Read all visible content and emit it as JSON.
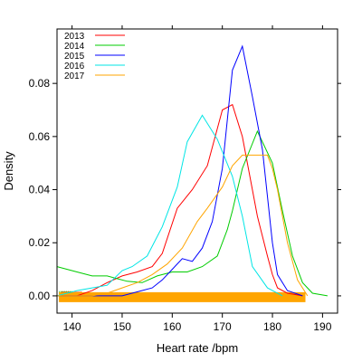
{
  "chart_data": {
    "type": "line",
    "xlabel": "Heart rate /bpm",
    "ylabel": "Density",
    "xlim": [
      137,
      193
    ],
    "ylim": [
      -0.0065,
      0.1005
    ],
    "x_ticks": [
      140,
      150,
      160,
      170,
      180,
      190
    ],
    "y_ticks": [
      0.0,
      0.02,
      0.04,
      0.06,
      0.08
    ],
    "x_tick_labels": [
      "140",
      "150",
      "160",
      "170",
      "180",
      "190"
    ],
    "y_tick_labels": [
      "0.00",
      "0.02",
      "0.04",
      "0.06",
      "0.08"
    ],
    "legend_position": "top-left",
    "grid": false,
    "rug": {
      "present": true,
      "y": 0.0,
      "main_range": [
        137.5,
        186.5
      ],
      "main_color": "#FFA500"
    },
    "series": [
      {
        "name": "2013",
        "color": "#FF0000",
        "x": [
          137,
          141,
          144,
          147,
          150,
          153,
          156,
          158,
          161,
          164,
          167,
          170,
          172,
          174,
          177,
          179,
          180,
          181,
          183,
          186
        ],
        "y": [
          0.0,
          0.0,
          0.002,
          0.005,
          0.0075,
          0.009,
          0.011,
          0.016,
          0.033,
          0.04,
          0.049,
          0.07,
          0.072,
          0.06,
          0.03,
          0.015,
          0.008,
          0.003,
          0.001,
          0.0
        ]
      },
      {
        "name": "2014",
        "color": "#00CC00",
        "x": [
          137,
          141,
          144,
          147,
          149,
          151,
          154,
          157,
          160,
          163,
          166,
          169,
          170,
          171,
          172,
          174,
          177,
          180,
          182,
          184,
          186,
          188,
          191
        ],
        "y": [
          0.011,
          0.009,
          0.0075,
          0.0075,
          0.0065,
          0.0055,
          0.005,
          0.0075,
          0.009,
          0.009,
          0.011,
          0.015,
          0.02,
          0.025,
          0.032,
          0.048,
          0.062,
          0.05,
          0.032,
          0.015,
          0.005,
          0.001,
          0.0
        ]
      },
      {
        "name": "2015",
        "color": "#0000FF",
        "x": [
          137,
          150,
          153,
          156,
          158,
          160,
          162,
          164,
          166,
          168,
          170,
          172,
          174,
          176,
          178,
          180,
          181,
          183,
          186
        ],
        "y": [
          0.0,
          0.0,
          0.0015,
          0.003,
          0.006,
          0.01,
          0.014,
          0.013,
          0.018,
          0.028,
          0.048,
          0.085,
          0.094,
          0.075,
          0.055,
          0.02,
          0.008,
          0.002,
          0.0
        ]
      },
      {
        "name": "2016",
        "color": "#00E5E5",
        "x": [
          137,
          141,
          144,
          147,
          150,
          152,
          155,
          158,
          161,
          163,
          166,
          169,
          172,
          174,
          176,
          179,
          182
        ],
        "y": [
          0.0,
          0.002,
          0.003,
          0.004,
          0.0095,
          0.011,
          0.015,
          0.026,
          0.041,
          0.058,
          0.068,
          0.059,
          0.045,
          0.03,
          0.011,
          0.003,
          0.0
        ]
      },
      {
        "name": "2017",
        "color": "#FFA500",
        "x": [
          137,
          144,
          147,
          150,
          153,
          156,
          159,
          162,
          165,
          167,
          170,
          172,
          174,
          177,
          179,
          180,
          181,
          183,
          185,
          187
        ],
        "y": [
          0.0,
          0.0,
          0.001,
          0.003,
          0.005,
          0.008,
          0.012,
          0.018,
          0.028,
          0.033,
          0.041,
          0.049,
          0.053,
          0.053,
          0.053,
          0.048,
          0.04,
          0.02,
          0.006,
          0.0
        ]
      }
    ]
  }
}
